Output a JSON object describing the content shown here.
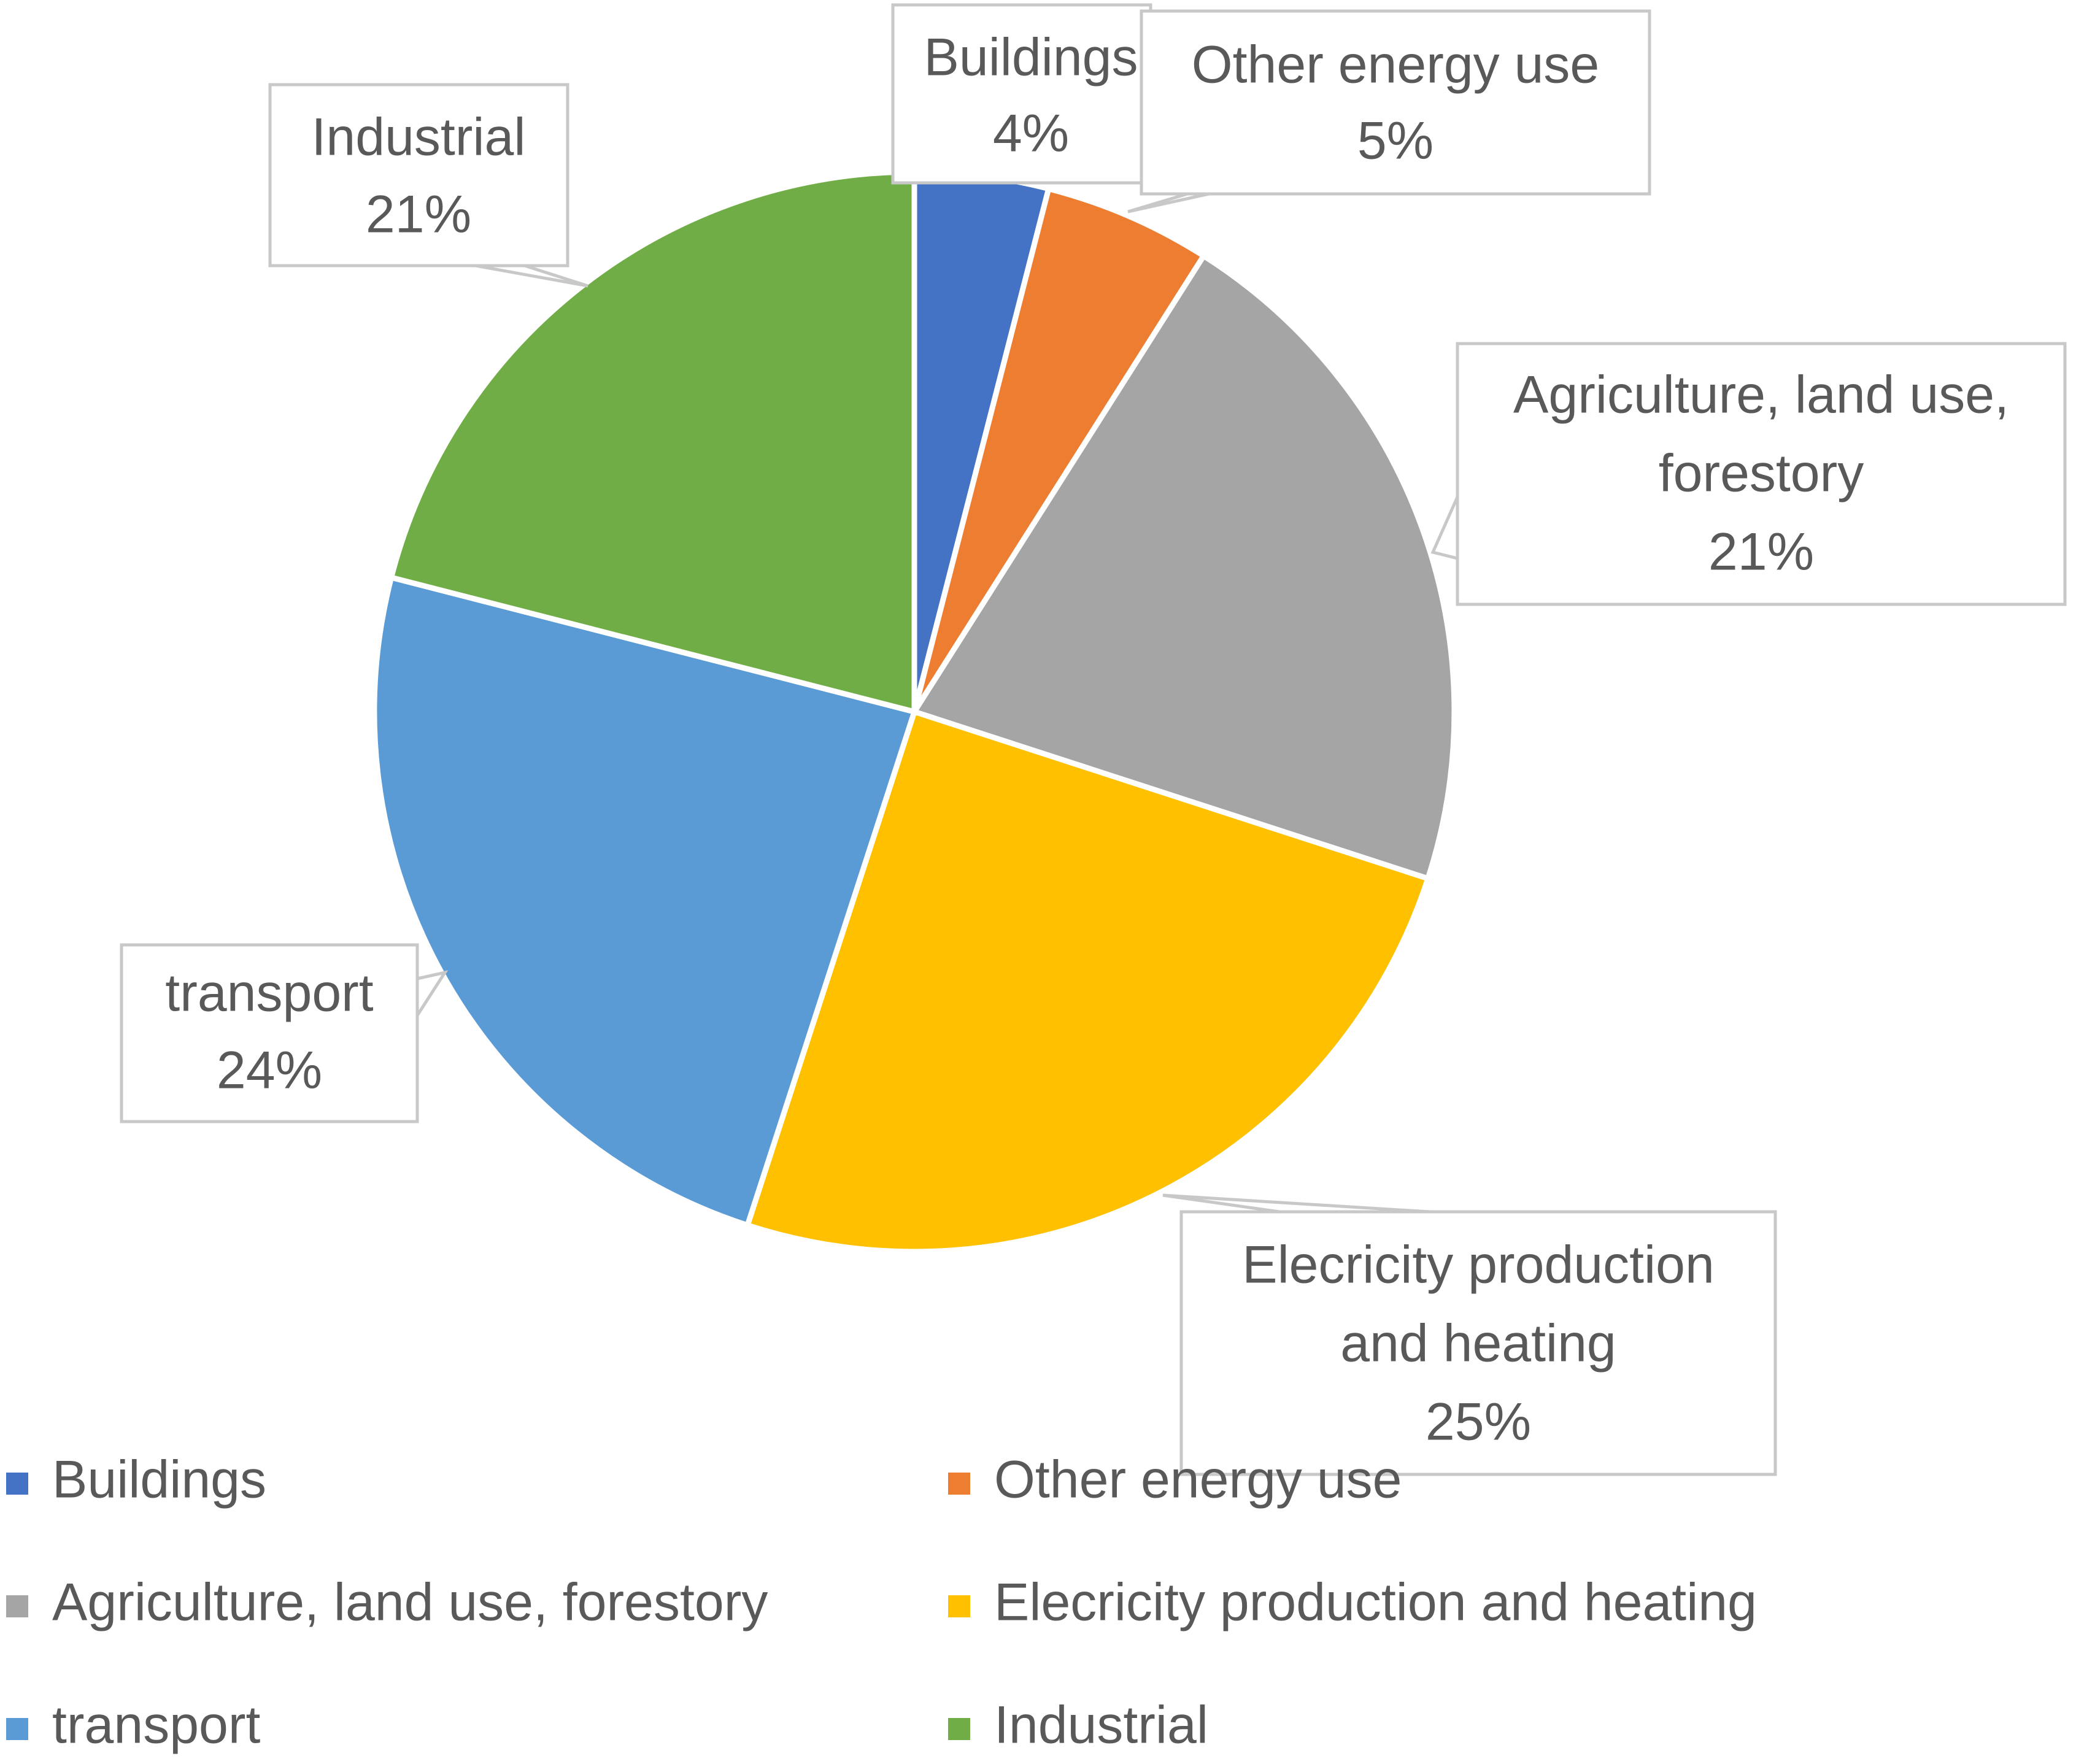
{
  "chart_data": {
    "type": "pie",
    "title": "",
    "slices": [
      {
        "name": "Buildings",
        "value": 4,
        "label": "4%",
        "color": "#4472C4"
      },
      {
        "name": "Other energy use",
        "value": 5,
        "label": "5%",
        "color": "#ED7D31"
      },
      {
        "name": "Agriculture, land use, forestory",
        "value": 21,
        "label": "21%",
        "color": "#A5A5A5"
      },
      {
        "name": "Elecricity production and heating",
        "value": 25,
        "label": "25%",
        "color": "#FFC000"
      },
      {
        "name": "transport",
        "value": 24,
        "label": "24%",
        "color": "#5B9BD5"
      },
      {
        "name": "Industrial",
        "value": 21,
        "label": "21%",
        "color": "#70AD47"
      }
    ],
    "callout_lines": [
      [
        "Buildings",
        "4%"
      ],
      [
        "Other energy use",
        "5%"
      ],
      [
        "Agriculture, land use,",
        "forestory",
        "21%"
      ],
      [
        "Elecricity production",
        "and heating",
        "25%"
      ],
      [
        "transport",
        "24%"
      ],
      [
        "Industrial",
        "21%"
      ]
    ],
    "legend": {
      "placement": "bottom",
      "columns": 2,
      "entries": [
        "Buildings",
        "Other energy use",
        "Agriculture, land use, forestory",
        "Elecricity production and heating",
        "transport",
        "Industrial"
      ]
    },
    "start_angle_deg": 0,
    "direction": "clockwise"
  }
}
